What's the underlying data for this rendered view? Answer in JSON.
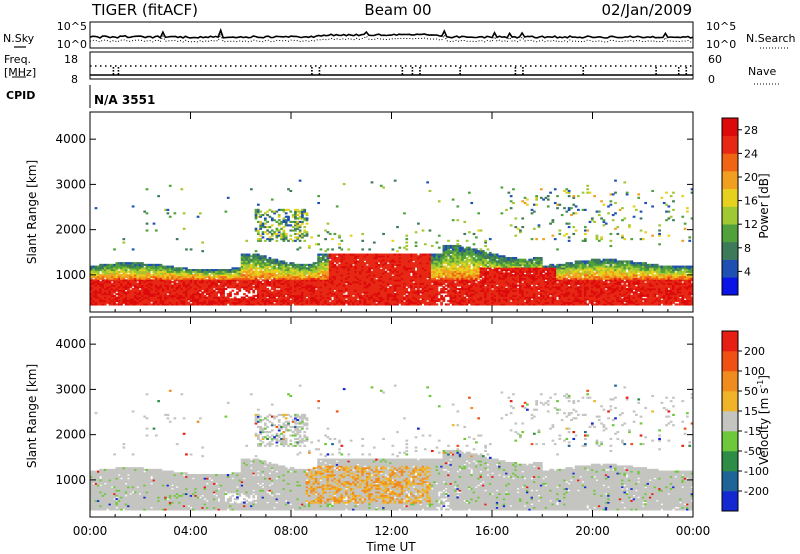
{
  "header": {
    "title": "TIGER (fitACF)",
    "beam": "Beam 00",
    "date": "02/Jan/2009"
  },
  "strip_labels": {
    "nsky": "N.Sky",
    "nsky_ticks": [
      "10^5",
      "10^0"
    ],
    "nsearch": "N.Search",
    "nsearch_ticks": [
      "10^5",
      "10^0"
    ],
    "freq_line1": "Freq.",
    "freq_line2": "[MHz]",
    "freq_ticks": [
      "18",
      "8"
    ],
    "nave": "Nave",
    "nave_ticks": [
      "60",
      "0"
    ],
    "cpid": "CPID",
    "cpid_value": "N/A 3551"
  },
  "chart_data": [
    {
      "type": "heatmap",
      "name": "power",
      "ylabel": "Slant Range [km]",
      "y_ticks": [
        1000,
        2000,
        3000,
        4000
      ],
      "ylim": [
        180,
        4600
      ],
      "x_ticks": [
        "00:00",
        "04:00",
        "08:00",
        "12:00",
        "16:00",
        "20:00",
        "00:00"
      ],
      "xlim_hours": [
        0,
        24
      ],
      "colorbar": {
        "label": "Power [dB]",
        "ticks": [
          "4",
          "8",
          "12",
          "16",
          "20",
          "24",
          "28"
        ],
        "tick_values": [
          4,
          8,
          12,
          16,
          20,
          24,
          28
        ],
        "range": [
          0,
          30
        ],
        "colors": [
          "#0a14e6",
          "#1e50b4",
          "#3c7a5a",
          "#50a03c",
          "#a0c832",
          "#e6d21e",
          "#f0a01e",
          "#f06414",
          "#e62814",
          "#dc0a0a"
        ]
      }
    },
    {
      "type": "heatmap",
      "name": "velocity",
      "ylabel": "Slant Range [km]",
      "y_ticks": [
        1000,
        2000,
        3000,
        4000
      ],
      "ylim": [
        180,
        4600
      ],
      "x_ticks": [
        "00:00",
        "04:00",
        "08:00",
        "12:00",
        "16:00",
        "20:00",
        "00:00"
      ],
      "xlim_hours": [
        0,
        24
      ],
      "xlabel": "Time UT",
      "colorbar": {
        "label_main": "Velocity [m s",
        "label_sup": "-1",
        "label_end": "]",
        "ticks": [
          "200",
          "100",
          "50",
          "15",
          "-15",
          "-50",
          "-100",
          "-200"
        ],
        "colors": [
          "#1428d2",
          "#1e6496",
          "#2d8c46",
          "#6ec83c",
          "#c4c4c0",
          "#f0b428",
          "#f08c1e",
          "#f05014",
          "#e61e14"
        ]
      }
    }
  ]
}
